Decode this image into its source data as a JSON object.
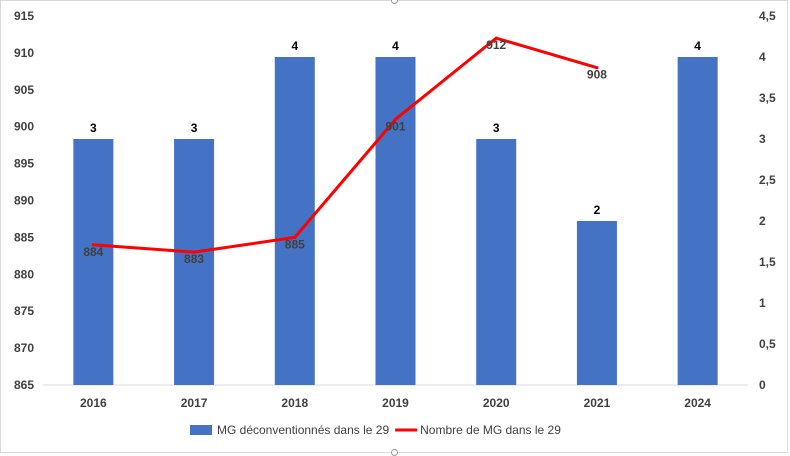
{
  "chart_data": {
    "type": "bar",
    "categories": [
      "2016",
      "2017",
      "2018",
      "2019",
      "2020",
      "2021",
      "2024"
    ],
    "series": [
      {
        "name": "MG déconventionnés dans le 29",
        "type": "bar",
        "axis": "right",
        "color": "#4472c4",
        "values": [
          3,
          3,
          4,
          4,
          3,
          2,
          4
        ],
        "labels": [
          "3",
          "3",
          "4",
          "4",
          "3",
          "2",
          "4"
        ]
      },
      {
        "name": "Nombre de MG dans le 29",
        "type": "line",
        "axis": "left",
        "color": "#ff0000",
        "values": [
          884,
          883,
          885,
          901,
          912,
          908,
          null
        ],
        "labels": [
          "884",
          "883",
          "885",
          "901",
          "912",
          "908",
          ""
        ]
      }
    ],
    "y_left": {
      "ylim": [
        865,
        915
      ],
      "ticks": [
        "865",
        "870",
        "875",
        "880",
        "885",
        "890",
        "895",
        "900",
        "905",
        "910",
        "915"
      ]
    },
    "y_right": {
      "ylim": [
        0,
        4.5
      ],
      "ticks": [
        "0",
        "0,5",
        "1",
        "1,5",
        "2",
        "2,5",
        "3",
        "3,5",
        "4",
        "4,5"
      ]
    },
    "legend": {
      "position": "bottom",
      "items": [
        {
          "label": "MG déconventionnés dans le 29",
          "marker": "rect",
          "color": "#4472c4"
        },
        {
          "label": "Nombre de MG dans le 29",
          "marker": "line",
          "color": "#ff0000"
        }
      ]
    },
    "grid": false,
    "axis_color": "#d9d9d9"
  }
}
